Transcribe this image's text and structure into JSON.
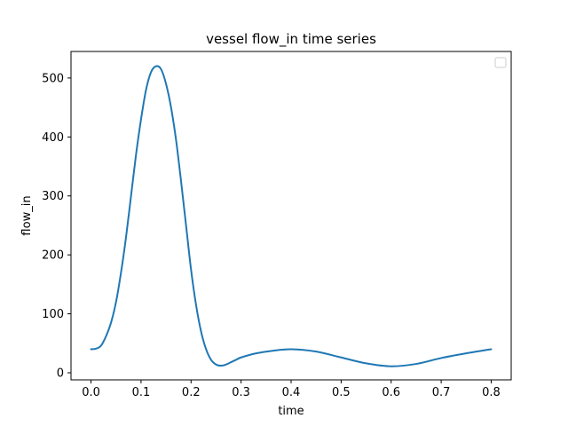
{
  "chart_data": {
    "type": "line",
    "title": "vessel flow_in time series",
    "xlabel": "time",
    "ylabel": "flow_in",
    "xlim": [
      -0.04,
      0.84
    ],
    "ylim": [
      -12,
      545
    ],
    "xticks": [
      0.0,
      0.1,
      0.2,
      0.3,
      0.4,
      0.5,
      0.6,
      0.7,
      0.8
    ],
    "xtick_labels": [
      "0.0",
      "0.1",
      "0.2",
      "0.3",
      "0.4",
      "0.5",
      "0.6",
      "0.7",
      "0.8"
    ],
    "yticks": [
      0,
      100,
      200,
      300,
      400,
      500
    ],
    "ytick_labels": [
      "0",
      "100",
      "200",
      "300",
      "400",
      "500"
    ],
    "grid": false,
    "legend": {
      "placement": "top-right",
      "entries": []
    },
    "series": [
      {
        "color": "#1f77b4",
        "x": [
          0.0,
          0.01,
          0.02,
          0.03,
          0.04,
          0.05,
          0.06,
          0.07,
          0.08,
          0.09,
          0.1,
          0.11,
          0.12,
          0.13,
          0.14,
          0.15,
          0.16,
          0.17,
          0.18,
          0.19,
          0.2,
          0.21,
          0.22,
          0.23,
          0.24,
          0.25,
          0.26,
          0.27,
          0.28,
          0.29,
          0.3,
          0.33,
          0.36,
          0.4,
          0.45,
          0.5,
          0.55,
          0.6,
          0.65,
          0.7,
          0.75,
          0.8
        ],
        "y": [
          40,
          41,
          46,
          62,
          85,
          120,
          170,
          230,
          300,
          370,
          430,
          480,
          510,
          520,
          515,
          490,
          450,
          395,
          325,
          250,
          175,
          115,
          70,
          40,
          22,
          14,
          12,
          14,
          18,
          22,
          26,
          33,
          37,
          40,
          36,
          26,
          16,
          11,
          15,
          25,
          33,
          40
        ]
      }
    ]
  }
}
